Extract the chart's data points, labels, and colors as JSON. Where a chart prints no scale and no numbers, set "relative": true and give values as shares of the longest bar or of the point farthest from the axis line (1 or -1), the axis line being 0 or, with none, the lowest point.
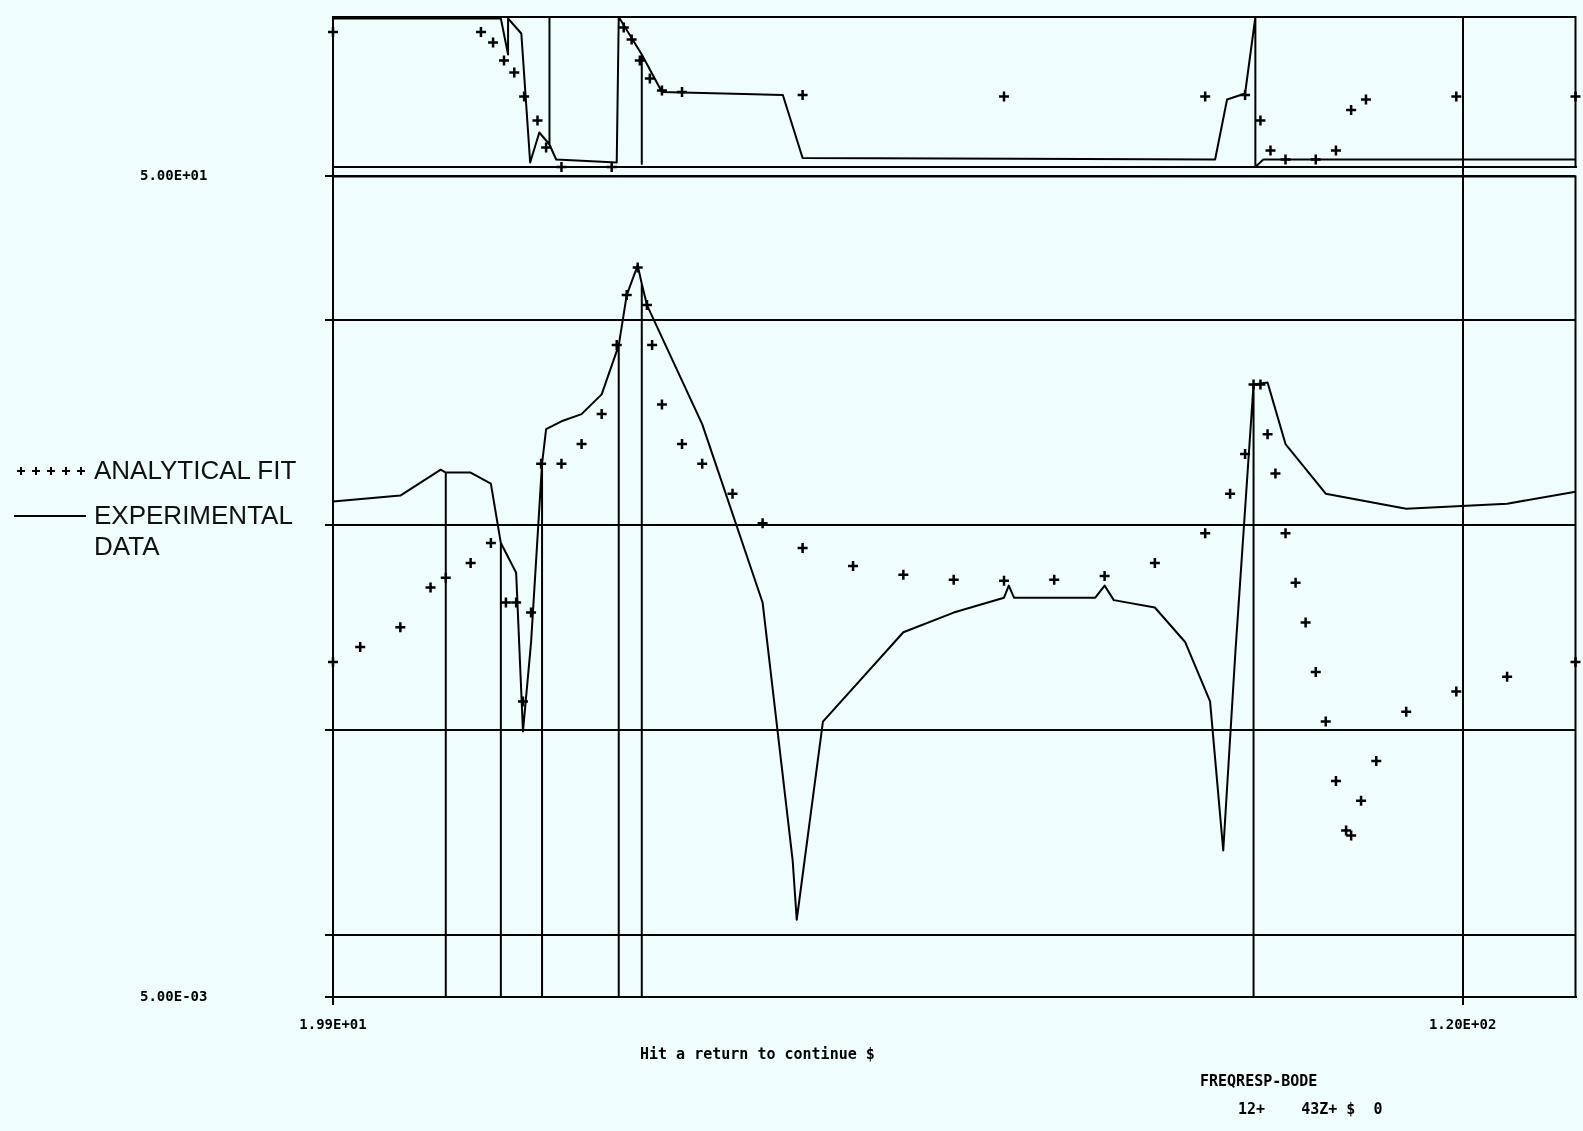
{
  "chart_data": [
    {
      "type": "line",
      "relative": true,
      "log": "x",
      "xlim": [
        19.9,
        143.6
      ],
      "xticks": [
        19.9,
        120
      ],
      "tick_labels": false,
      "grid": "x",
      "series": [
        {
          "type": "scatter",
          "marker": "cross",
          "color": "#000000",
          "x": [
            19.9,
            25.18,
            25.67,
            26.12,
            26.55,
            26.97,
            27.55,
            27.93,
            28.62,
            31.0,
            31.6,
            32.0,
            32.42,
            32.94,
            33.58,
            34.67,
            42.0,
            57.86,
            79.68,
            84.9,
            87.0,
            88.4,
            90.54,
            95.0,
            98.1,
            100.5,
            102.9,
            118.8,
            143.6
          ],
          "values": [
            0.9,
            0.9,
            0.83,
            0.71,
            0.63,
            0.47,
            0.31,
            0.13,
            0.0,
            0.0,
            0.93,
            0.85,
            0.71,
            0.59,
            0.51,
            0.5,
            0.48,
            0.47,
            0.47,
            0.48,
            0.31,
            0.11,
            0.05,
            0.05,
            0.11,
            0.38,
            0.45,
            0.47,
            0.47
          ]
        },
        {
          "marker": "none",
          "color": "#000000",
          "x": [
            19.9,
            25.99,
            26.29,
            26.29,
            26.85,
            27.23,
            27.63,
            28.08,
            28.08,
            28.08,
            28.38,
            31.25,
            31.35,
            32.52,
            32.52,
            32.52,
            33.58,
            40.7,
            42.0,
            80.95,
            82.5,
            84.9,
            86.3,
            86.3,
            87.4,
            143.6
          ],
          "values": [
            0.99,
            0.99,
            0.75,
            0.99,
            0.89,
            0.03,
            0.23,
            0.15,
            1.0,
            0.15,
            0.05,
            0.03,
            1.0,
            0.75,
            0.02,
            0.75,
            0.5,
            0.48,
            0.06,
            0.05,
            0.45,
            0.49,
            1.0,
            0.0,
            0.05,
            0.05
          ]
        }
      ]
    },
    {
      "type": "line",
      "log": "xy",
      "xlim": [
        19.9,
        143.6
      ],
      "ylim": [
        0.005,
        50
      ],
      "xticks": [
        {
          "value": 19.9,
          "label": "1.99E+01"
        },
        {
          "value": 120,
          "label": "1.20E+02"
        }
      ],
      "yticks": [
        {
          "value": 50,
          "label": "5.00E+01"
        },
        {
          "value": 10,
          "label": null
        },
        {
          "value": 1,
          "label": null
        },
        {
          "value": 0.1,
          "label": null
        },
        {
          "value": 0.01,
          "label": null
        },
        {
          "value": 0.005,
          "label": "5.00E-03"
        }
      ],
      "grid": true,
      "legend": "left",
      "annotations": [
        "Hit a return to continue $",
        "FREQRESP-BODE",
        "12+    43Z+ $  0"
      ],
      "series": [
        {
          "name": "ANALYTICAL FIT",
          "type": "scatter",
          "marker": "cross",
          "color": "#000000",
          "x": [
            19.9,
            20.78,
            22.15,
            23.24,
            23.81,
            24.77,
            25.58,
            26.2,
            26.63,
            26.92,
            27.27,
            27.71,
            28.62,
            29.55,
            30.51,
            31.25,
            31.75,
            32.31,
            32.79,
            33.06,
            33.58,
            34.67,
            35.8,
            37.57,
            39.41,
            42.0,
            45.51,
            49.3,
            53.41,
            57.86,
            62.67,
            67.9,
            73.55,
            79.68,
            82.9,
            84.9,
            86.05,
            87.0,
            87.99,
            89.1,
            90.54,
            92.0,
            93.48,
            95.0,
            96.52,
            98.1,
            99.7,
            100.5,
            102.1,
            104.6,
            109.7,
            118.8,
            128.8,
            143.6
          ],
          "values": [
            0.215,
            0.254,
            0.317,
            0.495,
            0.553,
            0.653,
            0.816,
            0.419,
            0.419,
            0.138,
            0.374,
            1.99,
            1.99,
            2.48,
            3.47,
            7.54,
            13.2,
            18.0,
            11.8,
            7.54,
            3.87,
            2.48,
            1.99,
            1.42,
            1.02,
            0.772,
            0.631,
            0.571,
            0.541,
            0.535,
            0.541,
            0.564,
            0.653,
            0.912,
            1.42,
            2.22,
            4.84,
            4.84,
            2.77,
            1.78,
            0.912,
            0.523,
            0.335,
            0.192,
            0.11,
            0.0565,
            0.0324,
            0.0306,
            0.0453,
            0.0706,
            0.123,
            0.154,
            0.182,
            0.215
          ]
        },
        {
          "name": "EXPERIMENTAL DATA",
          "marker": "none",
          "color": "#000000",
          "x": [
            19.9,
            22.15,
            23.62,
            23.81,
            23.81,
            23.81,
            24.77,
            25.58,
            25.99,
            25.99,
            25.99,
            26.63,
            26.92,
            27.27,
            27.75,
            27.75,
            27.75,
            27.93,
            28.62,
            29.55,
            30.51,
            31.35,
            31.35,
            31.35,
            31.75,
            32.31,
            32.52,
            32.52,
            32.52,
            32.79,
            35.8,
            39.41,
            41.34,
            41.61,
            43.38,
            49.3,
            53.41,
            57.86,
            58.3,
            58.79,
            66.9,
            67.9,
            68.9,
            73.55,
            77.2,
            80.3,
            82.0,
            83.6,
            86.05,
            86.05,
            86.05,
            87.99,
            90.54,
            96.52,
            109.7,
            128.8,
            143.6
          ],
          "values": [
            1.3,
            1.39,
            1.86,
            1.8,
            0.005,
            1.8,
            1.8,
            1.59,
            0.816,
            0.005,
            0.816,
            0.585,
            0.0986,
            0.268,
            1.99,
            0.005,
            1.99,
            2.93,
            3.2,
            3.47,
            4.33,
            7.5,
            0.005,
            7.5,
            13.2,
            18.4,
            15,
            0.005,
            15,
            11.8,
            3.1,
            0.419,
            0.0232,
            0.0119,
            0.11,
            0.3,
            0.374,
            0.442,
            0.506,
            0.442,
            0.442,
            0.506,
            0.43,
            0.396,
            0.268,
            0.138,
            0.0259,
            0.24,
            4.84,
            0.005,
            4.84,
            4.95,
            2.48,
            1.42,
            1.2,
            1.27,
            1.45
          ]
        }
      ]
    }
  ]
}
